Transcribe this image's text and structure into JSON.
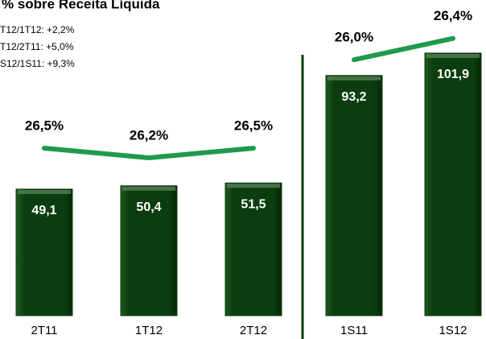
{
  "chart_data": [
    {
      "type": "bar_line",
      "title": "% sobre Receita Líquida",
      "annotations": [
        "T12/1T12: +2,2%",
        "T12/2T11: +5,0%",
        "S12/1S11: +9,3%"
      ],
      "categories": [
        "2T11",
        "1T12",
        "2T12"
      ],
      "series": [
        {
          "color": "#0b3d0f",
          "values": [
            49.1,
            50.4,
            51.5
          ],
          "value_labels": [
            "49,1",
            "50,4",
            "51,5"
          ]
        },
        {
          "color": "#1f9a4c",
          "axis": "y2",
          "values": [
            26.5,
            26.2,
            26.5
          ],
          "value_labels": [
            "26,5%",
            "26,2%",
            "26,5%"
          ]
        }
      ],
      "ylim": [
        0,
        120
      ],
      "y2lim": [
        21.3,
        30.9
      ]
    },
    {
      "type": "bar_line",
      "categories": [
        "1S11",
        "1S12"
      ],
      "series": [
        {
          "color": "#0b3d0f",
          "values": [
            93.2,
            101.9
          ],
          "value_labels": [
            "93,2",
            "101,9"
          ]
        },
        {
          "color": "#1f9a4c",
          "axis": "y2",
          "values": [
            26.0,
            26.4
          ],
          "value_labels": [
            "26,0%",
            "26,4%"
          ]
        }
      ],
      "ylim": [
        0,
        120
      ],
      "y2lim": [
        21.2,
        27.0
      ]
    }
  ]
}
